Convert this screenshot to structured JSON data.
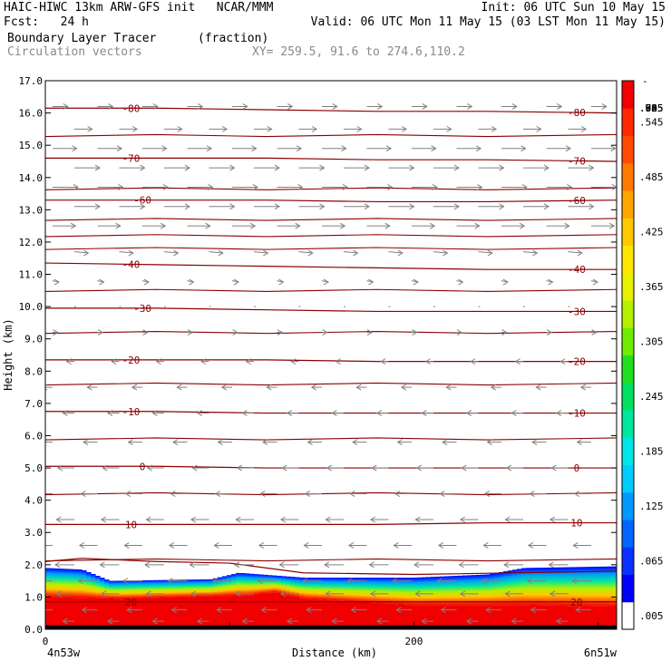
{
  "header": {
    "line1_left": "HAIC-HIWC 13km ARW-GFS init   NCAR/MMM",
    "line1_right": "Init: 06 UTC Sun 10 May 15",
    "line2_left": "Fcst:   24 h",
    "line2_right": "Valid: 06 UTC Mon 11 May 15 (03 LST Mon 11 May 15)",
    "line3_left": "Boundary Layer Tracer",
    "line3_units": "(fraction)",
    "line4_left": "Circulation vectors",
    "line4_xy": "XY= 259.5, 91.6 to 274.6,110.2"
  },
  "colors": {
    "contour": "#8b0000",
    "vector": "#808080",
    "colorbar": [
      "#ffffff",
      "#0000ff",
      "#0a32ff",
      "#0066ff",
      "#0099ff",
      "#00ccff",
      "#00e6e6",
      "#00e6a0",
      "#00e060",
      "#20e020",
      "#70ec00",
      "#b4f000",
      "#e6f000",
      "#ffe600",
      "#ffc800",
      "#ffa500",
      "#ff7800",
      "#ff4b00",
      "#ff2800",
      "#f00000"
    ]
  },
  "chart_data": {
    "type": "cross-section",
    "ylabel": "Height (km)",
    "xlabel": "Distance (km)",
    "ylim": [
      0,
      17
    ],
    "y_ticks": [
      "0.0",
      "1.0",
      "2.0",
      "3.0",
      "4.0",
      "5.0",
      "6.0",
      "7.0",
      "8.0",
      "9.0",
      "10.0",
      "11.0",
      "12.0",
      "13.0",
      "14.0",
      "15.0",
      "16.0",
      "17.0"
    ],
    "xlim": [
      0,
      310
    ],
    "x_ticks": [
      {
        "value": 0,
        "label": "0"
      },
      {
        "value": 200,
        "label": "200"
      }
    ],
    "x_end_labels": {
      "left": "4n53w",
      "right": "6n51w"
    },
    "colorbar": {
      "labels": [
        ".005",
        ".065",
        ".125",
        ".185",
        ".245",
        ".305",
        ".365",
        ".425",
        ".485",
        ".545",
        ".605",
        ".665",
        ".725",
        ".785",
        ".845",
        ".905"
      ],
      "top_label": "-"
    },
    "temperature_contours": [
      {
        "value": -80,
        "label": "-80",
        "height_km": [
          16.15,
          16.15,
          16.1,
          16.05,
          16.05,
          16.0
        ]
      },
      {
        "value": -70,
        "label": "-70",
        "height_km": [
          14.6,
          14.6,
          14.6,
          14.55,
          14.55,
          14.5
        ]
      },
      {
        "value": -60,
        "label": "-60",
        "height_km": [
          13.3,
          13.3,
          13.3,
          13.25,
          13.25,
          13.3
        ]
      },
      {
        "value": -40,
        "label": "-40",
        "height_km": [
          11.35,
          11.3,
          11.25,
          11.2,
          11.15,
          11.15
        ]
      },
      {
        "value": -30,
        "label": "-30",
        "height_km": [
          9.95,
          9.95,
          9.9,
          9.85,
          9.85,
          9.85
        ]
      },
      {
        "value": -20,
        "label": "-20",
        "height_km": [
          8.35,
          8.35,
          8.35,
          8.3,
          8.3,
          8.3
        ]
      },
      {
        "value": -10,
        "label": "-10",
        "height_km": [
          6.75,
          6.75,
          6.7,
          6.7,
          6.7,
          6.7
        ]
      },
      {
        "value": 0,
        "label": "0",
        "height_km": [
          5.05,
          5.05,
          5.0,
          5.0,
          5.0,
          5.0
        ]
      },
      {
        "value": 10,
        "label": "10",
        "height_km": [
          3.25,
          3.25,
          3.25,
          3.25,
          3.3,
          3.3
        ]
      },
      {
        "value": 20,
        "label": "20",
        "height_km": [
          0.85,
          0.85,
          0.85,
          0.85,
          0.85,
          0.85
        ]
      }
    ],
    "unlabeled_contour_heights_km": [
      15.3,
      13.65,
      12.7,
      12.2,
      11.8,
      10.5,
      9.2,
      7.6,
      5.9,
      4.2,
      2.15
    ],
    "contour_x_km": [
      0,
      60,
      120,
      180,
      240,
      310
    ],
    "tracer_top_km": [
      [
        0,
        1.9
      ],
      [
        20,
        1.85
      ],
      [
        35,
        1.5
      ],
      [
        90,
        1.55
      ],
      [
        105,
        1.75
      ],
      [
        140,
        1.6
      ],
      [
        200,
        1.6
      ],
      [
        240,
        1.7
      ],
      [
        260,
        1.9
      ],
      [
        310,
        1.95
      ]
    ],
    "tracer_full_top_km": [
      [
        0,
        1.0
      ],
      [
        40,
        0.95
      ],
      [
        110,
        1.05
      ],
      [
        125,
        1.15
      ],
      [
        140,
        0.95
      ],
      [
        200,
        0.75
      ],
      [
        260,
        0.75
      ],
      [
        310,
        0.7
      ]
    ],
    "boundary_layer_top_km": [
      [
        0,
        2.1
      ],
      [
        20,
        2.2
      ],
      [
        60,
        2.1
      ],
      [
        100,
        2.05
      ],
      [
        140,
        1.75
      ],
      [
        200,
        1.7
      ],
      [
        310,
        1.8
      ]
    ],
    "wind_rows": [
      {
        "z": 16.2,
        "u": 0.6,
        "w": 0.0
      },
      {
        "z": 15.5,
        "u": 0.7,
        "w": 0.0
      },
      {
        "z": 14.9,
        "u": 0.95,
        "w": 0.0
      },
      {
        "z": 14.3,
        "u": 1.0,
        "w": 0.0
      },
      {
        "z": 13.7,
        "u": 1.0,
        "w": 0.0
      },
      {
        "z": 13.1,
        "u": 1.0,
        "w": 0.0
      },
      {
        "z": 12.5,
        "u": 0.9,
        "w": 0.0
      },
      {
        "z": 11.7,
        "u": 0.55,
        "w": -0.05
      },
      {
        "z": 10.8,
        "u": 0.25,
        "w": -0.05
      },
      {
        "z": 10.0,
        "u": 0.1,
        "w": 0.0
      },
      {
        "z": 9.2,
        "u": 0.2,
        "w": 0.0
      },
      {
        "z": 8.3,
        "u": -0.3,
        "w": 0.0
      },
      {
        "z": 7.5,
        "u": -0.4,
        "w": 0.0
      },
      {
        "z": 6.7,
        "u": -0.45,
        "w": 0.0
      },
      {
        "z": 5.8,
        "u": -0.55,
        "w": 0.0
      },
      {
        "z": 5.0,
        "u": -0.65,
        "w": 0.0
      },
      {
        "z": 4.2,
        "u": -0.65,
        "w": 0.0
      },
      {
        "z": 3.4,
        "u": -0.7,
        "w": 0.0
      },
      {
        "z": 2.6,
        "u": -0.7,
        "w": 0.0
      },
      {
        "z": 2.0,
        "u": -0.75,
        "w": 0.0
      },
      {
        "z": 1.5,
        "u": -0.75,
        "w": 0.0
      },
      {
        "z": 1.1,
        "u": -0.7,
        "w": 0.0
      },
      {
        "z": 0.6,
        "u": -0.6,
        "w": 0.0
      },
      {
        "z": 0.25,
        "u": -0.45,
        "w": 0.0
      }
    ]
  }
}
